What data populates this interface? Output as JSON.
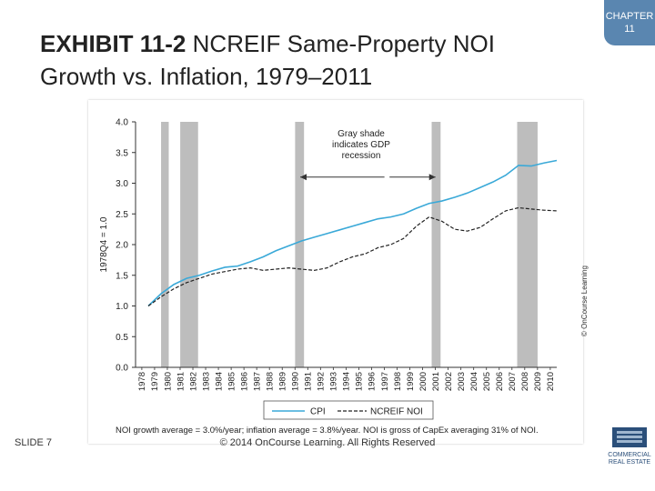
{
  "slide": {
    "title_bold": "EXHIBIT 11-2",
    "title_rest": "NCREIF Same-Property NOI Growth vs. Inflation, 1979–2011",
    "chapter_line1": "CHAPTER",
    "chapter_line2": "11",
    "credit": "© OnCourse Learning",
    "slide_label": "SLIDE 7",
    "copyright": "© 2014 OnCourse Learning. All Rights Reserved",
    "logo_text_1": "COMMERCIAL",
    "logo_text_2": "REAL ESTATE",
    "colors": {
      "accent": "#5a86b0",
      "cpi": "#3aa9d8",
      "noi": "#222222",
      "shade": "#bdbdbd"
    }
  },
  "chart_data": {
    "type": "line",
    "ylabel": "1978Q4 = 1.0",
    "ylim": [
      0,
      4.0
    ],
    "yticks": [
      "0.0",
      "0.5",
      "1.0",
      "1.5",
      "2.0",
      "2.5",
      "3.0",
      "3.5",
      "4.0"
    ],
    "x_categories": [
      "1978",
      "1979",
      "1980",
      "1981",
      "1982",
      "1983",
      "1984",
      "1985",
      "1986",
      "1987",
      "1988",
      "1989",
      "1990",
      "1991",
      "1992",
      "1993",
      "1994",
      "1995",
      "1996",
      "1997",
      "1998",
      "1999",
      "2000",
      "2001",
      "2002",
      "2003",
      "2004",
      "2005",
      "2006",
      "2007",
      "2008",
      "2009",
      "2010"
    ],
    "recession_bands": [
      [
        1980.0,
        1980.6
      ],
      [
        1981.5,
        1982.9
      ],
      [
        1990.5,
        1991.2
      ],
      [
        2001.2,
        2001.9
      ],
      [
        2007.9,
        2009.5
      ]
    ],
    "annotation": [
      "Gray shade",
      "indicates GDP",
      "recession"
    ],
    "series": [
      {
        "name": "CPI",
        "style": "solid",
        "x": [
          1979,
          1980,
          1981,
          1982,
          1983,
          1984,
          1985,
          1986,
          1987,
          1988,
          1989,
          1990,
          1991,
          1992,
          1993,
          1994,
          1995,
          1996,
          1997,
          1998,
          1999,
          2000,
          2001,
          2002,
          2003,
          2004,
          2005,
          2006,
          2007,
          2008,
          2009,
          2010,
          2011
        ],
        "values": [
          1.0,
          1.2,
          1.35,
          1.45,
          1.5,
          1.57,
          1.63,
          1.65,
          1.72,
          1.8,
          1.9,
          1.98,
          2.06,
          2.12,
          2.18,
          2.24,
          2.3,
          2.36,
          2.42,
          2.45,
          2.5,
          2.59,
          2.67,
          2.71,
          2.77,
          2.84,
          2.93,
          3.02,
          3.13,
          3.29,
          3.28,
          3.33,
          3.37
        ]
      },
      {
        "name": "NCREIF NOI",
        "style": "dashed",
        "x": [
          1979,
          1980,
          1981,
          1982,
          1983,
          1984,
          1985,
          1986,
          1987,
          1988,
          1989,
          1990,
          1991,
          1992,
          1993,
          1994,
          1995,
          1996,
          1997,
          1998,
          1999,
          2000,
          2001,
          2002,
          2003,
          2004,
          2005,
          2006,
          2007,
          2008,
          2009,
          2010,
          2011
        ],
        "values": [
          1.0,
          1.15,
          1.28,
          1.38,
          1.45,
          1.52,
          1.56,
          1.6,
          1.62,
          1.58,
          1.6,
          1.62,
          1.6,
          1.58,
          1.62,
          1.72,
          1.8,
          1.85,
          1.95,
          2.0,
          2.1,
          2.3,
          2.45,
          2.38,
          2.25,
          2.22,
          2.28,
          2.42,
          2.55,
          2.6,
          2.58,
          2.56,
          2.55
        ]
      }
    ],
    "legend_position": "bottom",
    "note": "NOI growth average = 3.0%/year; inflation average = 3.8%/year. NOI is gross of CapEx averaging 31% of NOI."
  }
}
